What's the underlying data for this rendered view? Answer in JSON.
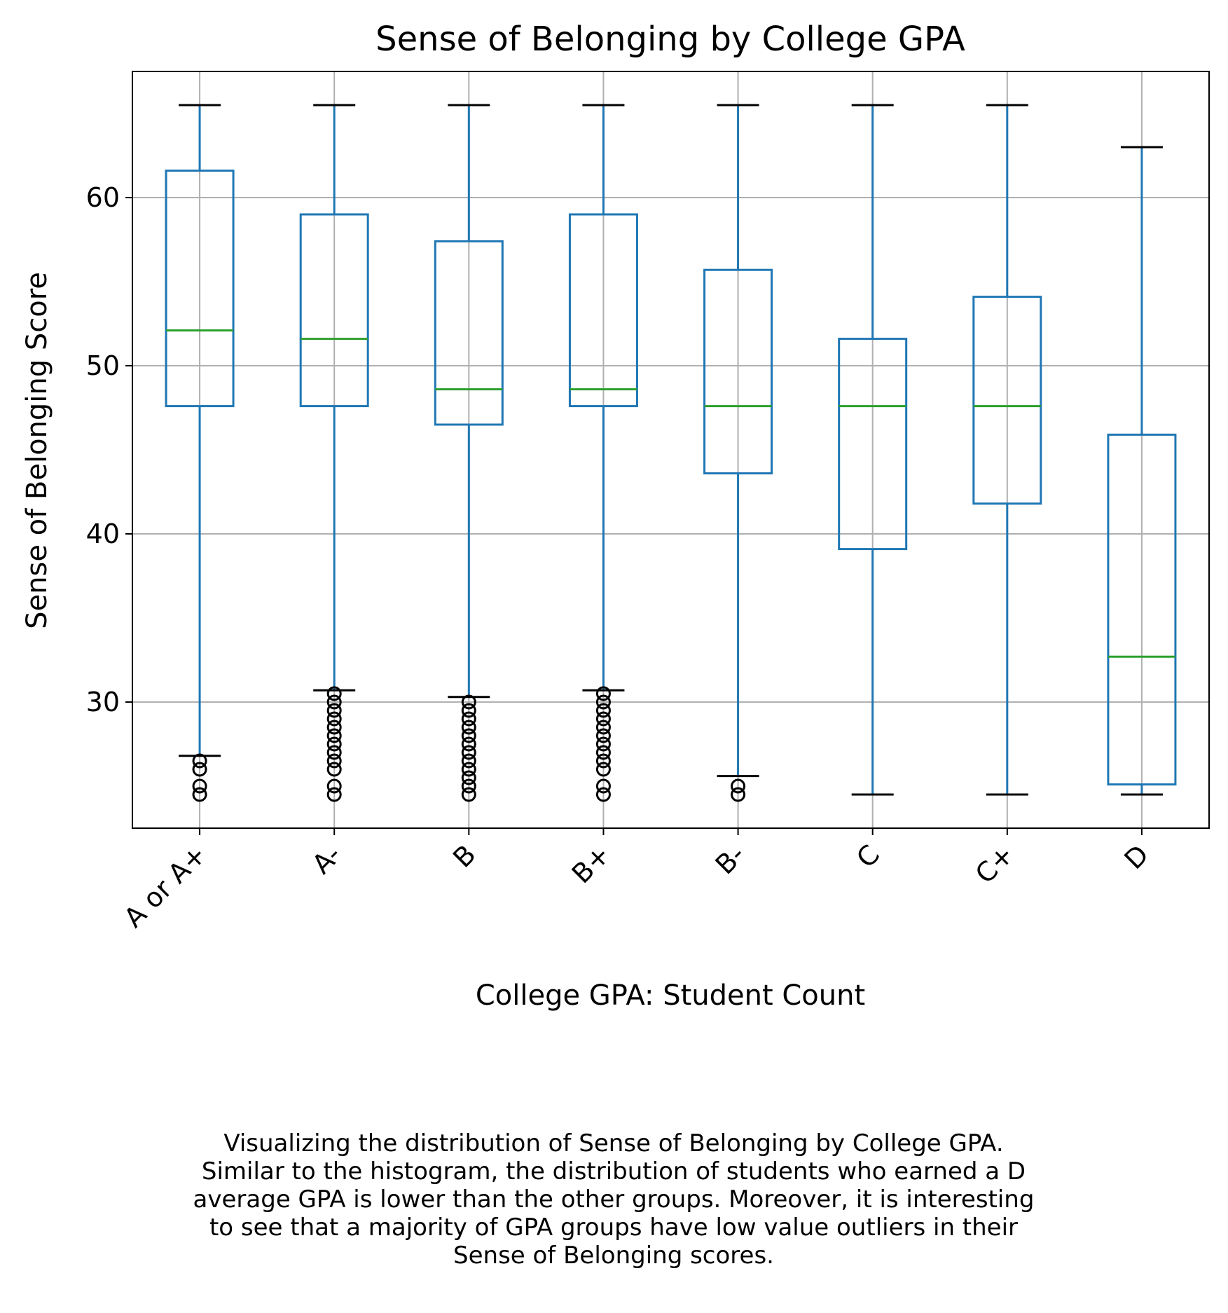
{
  "chart_data": {
    "type": "box",
    "title": "Sense of Belonging by College GPA",
    "xlabel": "College GPA: Student Count",
    "ylabel": "Sense of Belonging Score",
    "ylim": [
      22.5,
      67.5
    ],
    "yticks": [
      30,
      40,
      50,
      60
    ],
    "grid": true,
    "colors": {
      "box": "#1f77b4",
      "median": "#2ca02c",
      "caps": "#000000",
      "grid": "#b0b0b0"
    },
    "categories": [
      "A or A+",
      "A-",
      "B",
      "B+",
      "B-",
      "C",
      "C+",
      "D"
    ],
    "boxes": [
      {
        "category": "A or A+",
        "whislo": 26.8,
        "q1": 47.6,
        "median": 52.1,
        "q3": 61.6,
        "whishi": 65.5,
        "fliers": [
          24.5,
          25.0,
          26.0,
          26.5
        ]
      },
      {
        "category": "A-",
        "whislo": 30.7,
        "q1": 47.6,
        "median": 51.6,
        "q3": 59.0,
        "whishi": 65.5,
        "fliers": [
          24.5,
          25.0,
          26.0,
          26.5,
          27.0,
          27.5,
          28.0,
          28.5,
          29.0,
          29.5,
          30.0,
          30.5
        ]
      },
      {
        "category": "B",
        "whislo": 30.3,
        "q1": 46.5,
        "median": 48.6,
        "q3": 57.4,
        "whishi": 65.5,
        "fliers": [
          24.5,
          25.0,
          25.5,
          26.0,
          26.5,
          27.0,
          27.5,
          28.0,
          28.5,
          29.0,
          29.5,
          30.0
        ]
      },
      {
        "category": "B+",
        "whislo": 30.7,
        "q1": 47.6,
        "median": 48.6,
        "q3": 59.0,
        "whishi": 65.5,
        "fliers": [
          24.5,
          25.0,
          26.0,
          26.5,
          27.0,
          27.5,
          28.0,
          28.5,
          29.0,
          29.5,
          30.0,
          30.5
        ]
      },
      {
        "category": "B-",
        "whislo": 25.6,
        "q1": 43.6,
        "median": 47.6,
        "q3": 55.7,
        "whishi": 65.5,
        "fliers": [
          24.5,
          25.0
        ]
      },
      {
        "category": "C",
        "whislo": 24.5,
        "q1": 39.1,
        "median": 47.6,
        "q3": 51.6,
        "whishi": 65.5,
        "fliers": []
      },
      {
        "category": "C+",
        "whislo": 24.5,
        "q1": 41.8,
        "median": 47.6,
        "q3": 54.1,
        "whishi": 65.5,
        "fliers": []
      },
      {
        "category": "D",
        "whislo": 24.5,
        "q1": 25.1,
        "median": 32.7,
        "q3": 45.9,
        "whishi": 63.0,
        "fliers": []
      }
    ]
  },
  "caption_lines": [
    "Visualizing the distribution of Sense of Belonging by College GPA.",
    "Similar to the histogram, the distribution of students who earned a D",
    "average GPA is lower than the other groups. Moreover, it is interesting",
    "to see that a majority of GPA groups have low value outliers in their",
    "Sense of Belonging scores."
  ]
}
